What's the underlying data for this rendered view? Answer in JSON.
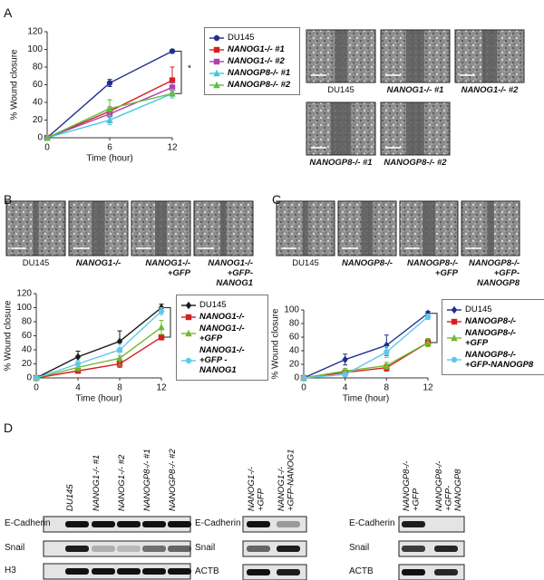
{
  "panel_labels": [
    "A",
    "B",
    "C",
    "D"
  ],
  "chart_data": [
    {
      "type": "line",
      "xlabel": "Time (hour)",
      "ylabel": "% Wound closure",
      "x": [
        0,
        6,
        12
      ],
      "xlim": [
        0,
        12
      ],
      "xticks": [
        0,
        6,
        12
      ],
      "ylim": [
        0,
        120
      ],
      "yticks": [
        0,
        20,
        40,
        60,
        80,
        100,
        120
      ],
      "annotation": "*",
      "series": [
        {
          "name": "DU145",
          "color": "#1f2f8a",
          "marker": "circle",
          "values": [
            0,
            62,
            98
          ],
          "errors": [
            0,
            4,
            0
          ]
        },
        {
          "name": "NANOG1-/- #1",
          "color": "#d42020",
          "marker": "square",
          "values": [
            0,
            30,
            65
          ],
          "errors": [
            0,
            13,
            15
          ]
        },
        {
          "name": "NANOG1-/- #2",
          "color": "#b040b0",
          "marker": "square",
          "values": [
            0,
            27,
            57
          ],
          "errors": [
            0,
            8,
            6
          ]
        },
        {
          "name": "NANOGP8-/- #1",
          "color": "#40c8e0",
          "marker": "triangle",
          "values": [
            0,
            20,
            50
          ],
          "errors": [
            0,
            5,
            5
          ]
        },
        {
          "name": "NANOGP8-/- #2",
          "color": "#60c040",
          "marker": "triangle",
          "values": [
            0,
            33,
            50
          ],
          "errors": [
            0,
            10,
            3
          ]
        }
      ]
    },
    {
      "type": "line",
      "xlabel": "Time (hour)",
      "ylabel": "% Wound closure",
      "x": [
        0,
        4,
        8,
        12
      ],
      "xlim": [
        0,
        12
      ],
      "xticks": [
        0,
        4,
        8,
        12
      ],
      "ylim": [
        0,
        120
      ],
      "yticks": [
        0,
        20,
        40,
        60,
        80,
        100,
        120
      ],
      "annotation": "*",
      "series": [
        {
          "name": "DU145",
          "color": "#1a1a1a",
          "marker": "diamond",
          "values": [
            0,
            30,
            52,
            100
          ],
          "errors": [
            0,
            8,
            15,
            5
          ]
        },
        {
          "name": "NANOG1-/-",
          "color": "#d42020",
          "marker": "square",
          "values": [
            0,
            10,
            20,
            58
          ],
          "errors": [
            0,
            3,
            5,
            4
          ]
        },
        {
          "name": "NANOG1-/- +GFP",
          "color": "#70b830",
          "marker": "triangle",
          "values": [
            0,
            15,
            28,
            72
          ],
          "errors": [
            0,
            5,
            10,
            10
          ]
        },
        {
          "name": "NANOG1-/- +GFP - NANOG1",
          "color": "#60c8e8",
          "marker": "circle",
          "values": [
            0,
            20,
            40,
            95
          ],
          "errors": [
            0,
            5,
            8,
            5
          ]
        }
      ]
    },
    {
      "type": "line",
      "xlabel": "Time (hour)",
      "ylabel": "% Wound closure",
      "x": [
        0,
        4,
        8,
        12
      ],
      "xlim": [
        0,
        12
      ],
      "xticks": [
        0,
        4,
        8,
        12
      ],
      "ylim": [
        0,
        100
      ],
      "yticks": [
        0,
        20,
        40,
        60,
        80,
        100
      ],
      "annotation": "*",
      "series": [
        {
          "name": "DU145",
          "color": "#1f2f8a",
          "marker": "diamond",
          "values": [
            0,
            27,
            48,
            95
          ],
          "errors": [
            0,
            8,
            15,
            3
          ]
        },
        {
          "name": "NANOGP8-/-",
          "color": "#d42020",
          "marker": "square",
          "values": [
            0,
            8,
            15,
            52
          ],
          "errors": [
            0,
            3,
            5,
            5
          ]
        },
        {
          "name": "NANOGP8-/- +GFP",
          "color": "#70b830",
          "marker": "triangle",
          "values": [
            0,
            10,
            18,
            52
          ],
          "errors": [
            0,
            4,
            5,
            6
          ]
        },
        {
          "name": "NANOGP8-/- +GFP-NANOGP8",
          "color": "#60c8e8",
          "marker": "circle",
          "values": [
            0,
            5,
            38,
            90
          ],
          "errors": [
            0,
            3,
            8,
            4
          ]
        }
      ]
    }
  ],
  "micrographs": [
    {
      "labels": [
        "DU145",
        "NANOG1-/- #1",
        "NANOG1-/- #2",
        "NANOGP8-/- #1",
        "NANOGP8-/- #2"
      ]
    },
    {
      "labels": [
        "DU145",
        "NANOG1-/-",
        "NANOG1-/- +GFP",
        "NANOG1-/- +GFP-NANOG1"
      ]
    },
    {
      "labels": [
        "DU145",
        "NANOGP8-/-",
        "NANOGP8-/- +GFP",
        "NANOGP8-/- +GFP-NANOGP8"
      ]
    }
  ],
  "blots": [
    {
      "lanes": [
        "DU145",
        "NANOG1-/- #1",
        "NANOG1-/- #2",
        "NANOGP8-/- #1",
        "NANOGP8-/- #2"
      ],
      "rows": [
        "E-Cadherin",
        "Snail",
        "H3"
      ]
    },
    {
      "lanes": [
        "NANOG1-/-+GFP",
        "NANOG1-/- +GFP-NANOG1"
      ],
      "rows": [
        "E-Cadherin",
        "Snail",
        "ACTB"
      ]
    },
    {
      "lanes": [
        "NANOGP8-/-+GFP",
        "NANOGP8-/- +GFP-NANOGP8"
      ],
      "rows": [
        "E-Cadherin",
        "Snail",
        "ACTB"
      ]
    }
  ]
}
